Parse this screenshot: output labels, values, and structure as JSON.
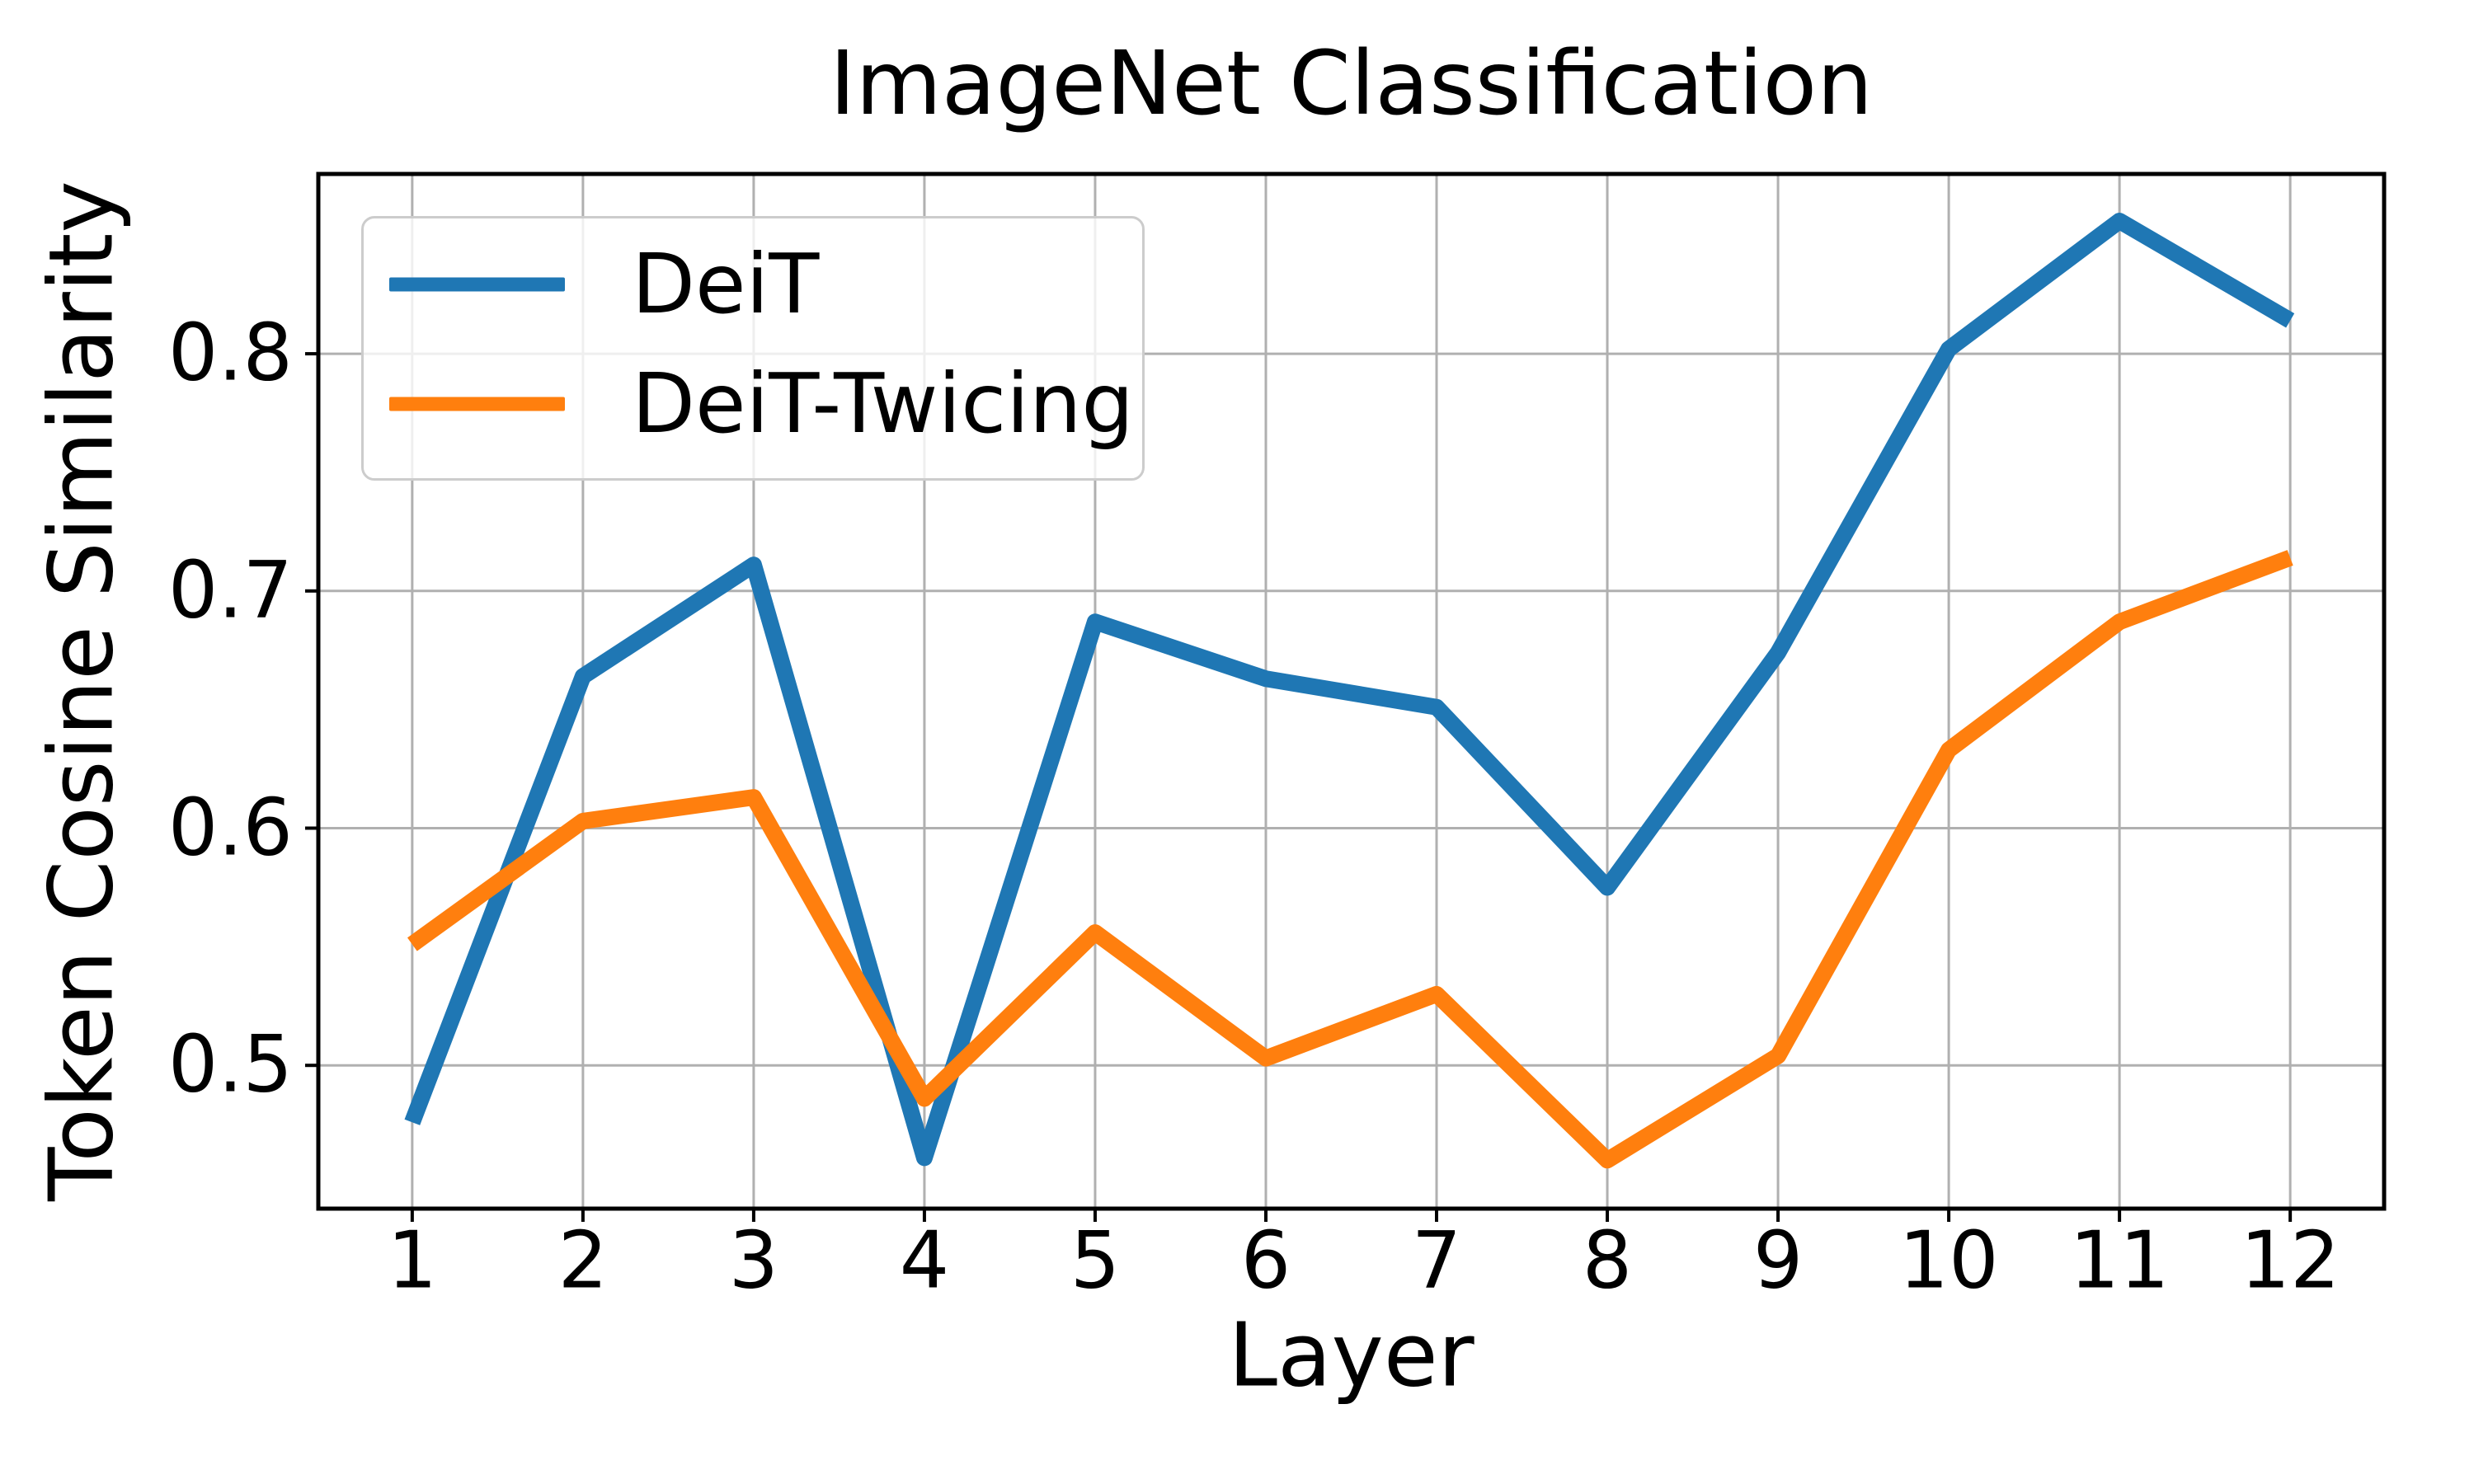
{
  "chart_data": {
    "type": "line",
    "title": "ImageNet Classification",
    "xlabel": "Layer",
    "ylabel": "Token Cosine Similarity",
    "x": [
      1,
      2,
      3,
      4,
      5,
      6,
      7,
      8,
      9,
      10,
      11,
      12
    ],
    "series": [
      {
        "name": "DeiT",
        "color": "#1f77b4",
        "values": [
          0.476,
          0.664,
          0.711,
          0.461,
          0.687,
          0.663,
          0.651,
          0.575,
          0.674,
          0.802,
          0.856,
          0.814
        ]
      },
      {
        "name": "DeiT-Twicing",
        "color": "#ff7f0e",
        "values": [
          0.551,
          0.603,
          0.613,
          0.486,
          0.556,
          0.503,
          0.53,
          0.46,
          0.504,
          0.633,
          0.687,
          0.714
        ]
      }
    ],
    "xlim": [
      0.45,
      12.55
    ],
    "ylim": [
      0.4396,
      0.8758
    ],
    "xticks": [
      1,
      2,
      3,
      4,
      5,
      6,
      7,
      8,
      9,
      10,
      11,
      12
    ],
    "yticks": [
      0.5,
      0.6,
      0.7,
      0.8
    ],
    "ytick_labels": [
      "0.5",
      "0.6",
      "0.7",
      "0.8"
    ],
    "grid": true,
    "grid_color": "#b0b0b0",
    "axis_color": "#000000",
    "background": "#ffffff",
    "legend_position": "upper left"
  }
}
